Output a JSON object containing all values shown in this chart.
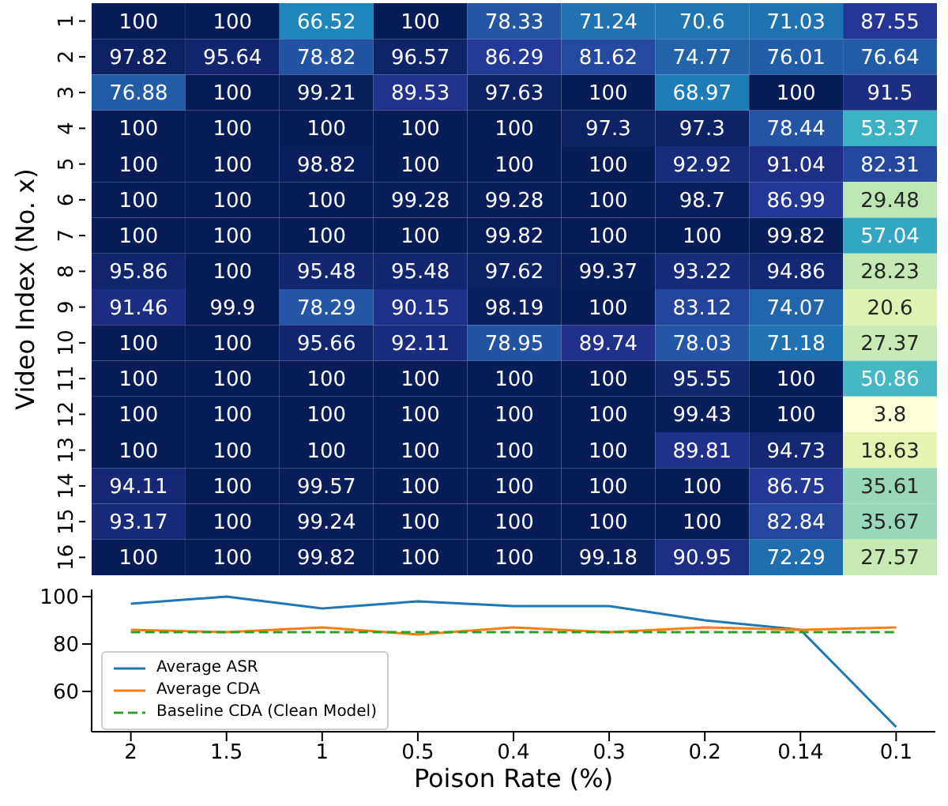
{
  "chart_data": [
    {
      "type": "heatmap",
      "categories": [
        "2",
        "1.5",
        "1",
        "0.5",
        "0.4",
        "0.3",
        "0.2",
        "0.14",
        "0.1"
      ],
      "y_categories": [
        "1",
        "2",
        "3",
        "4",
        "5",
        "6",
        "7",
        "8",
        "9",
        "10",
        "11",
        "12",
        "13",
        "14",
        "15",
        "16"
      ],
      "ylabel": "Video Index (No. x)",
      "tick_labels": "y",
      "data_labels": true,
      "cells": [
        [
          100,
          100,
          66.52,
          100,
          78.33,
          71.24,
          70.6,
          71.03,
          87.55
        ],
        [
          97.82,
          95.64,
          78.82,
          96.57,
          86.29,
          81.62,
          74.77,
          76.01,
          76.64
        ],
        [
          76.88,
          100,
          99.21,
          89.53,
          97.63,
          100,
          68.97,
          100,
          91.5
        ],
        [
          100,
          100,
          100,
          100,
          100,
          97.3,
          97.3,
          78.44,
          53.37
        ],
        [
          100,
          100,
          98.82,
          100,
          100,
          100,
          92.92,
          91.04,
          82.31
        ],
        [
          100,
          100,
          100,
          99.28,
          99.28,
          100,
          98.7,
          86.99,
          29.48
        ],
        [
          100,
          100,
          100,
          100,
          99.82,
          100,
          100,
          99.82,
          57.04
        ],
        [
          95.86,
          100,
          95.48,
          95.48,
          97.62,
          99.37,
          93.22,
          94.86,
          28.23
        ],
        [
          91.46,
          99.9,
          78.29,
          90.15,
          98.19,
          100,
          83.12,
          74.07,
          20.6
        ],
        [
          100,
          100,
          95.66,
          92.11,
          78.95,
          89.74,
          78.03,
          71.18,
          27.37
        ],
        [
          100,
          100,
          100,
          100,
          100,
          100,
          95.55,
          100,
          50.86
        ],
        [
          100,
          100,
          100,
          100,
          100,
          100,
          99.43,
          100,
          3.8
        ],
        [
          100,
          100,
          100,
          100,
          100,
          100,
          89.81,
          94.73,
          18.63
        ],
        [
          94.11,
          100,
          99.57,
          100,
          100,
          100,
          100,
          86.75,
          35.61
        ],
        [
          93.17,
          100,
          99.24,
          100,
          100,
          100,
          100,
          82.84,
          35.67
        ],
        [
          100,
          100,
          99.82,
          100,
          100,
          99.18,
          90.95,
          72.29,
          27.57
        ]
      ]
    },
    {
      "type": "line",
      "categories": [
        "2",
        "1.5",
        "1",
        "0.5",
        "0.4",
        "0.3",
        "0.2",
        "0.14",
        "0.1"
      ],
      "xlabel": "Poison Rate (%)",
      "ylim": [
        43,
        103
      ],
      "yticks": [
        60,
        80,
        100
      ],
      "grid": false,
      "legend": "bottom left",
      "marker": "none",
      "series": [
        {
          "name": "Average ASR",
          "color": "#1f77b4",
          "values": [
            97,
            100,
            95,
            98,
            96,
            96,
            90,
            86,
            45
          ]
        },
        {
          "name": "Average CDA",
          "color": "#ff7f0e",
          "values": [
            86,
            85,
            87,
            84,
            87,
            85,
            87,
            86,
            87
          ]
        },
        {
          "name": "Baseline CDA (Clean Model)",
          "color": "#2ca02c",
          "line_style": "dashed",
          "values": [
            85,
            85,
            85,
            85,
            85,
            85,
            85,
            85,
            85
          ]
        }
      ]
    }
  ]
}
